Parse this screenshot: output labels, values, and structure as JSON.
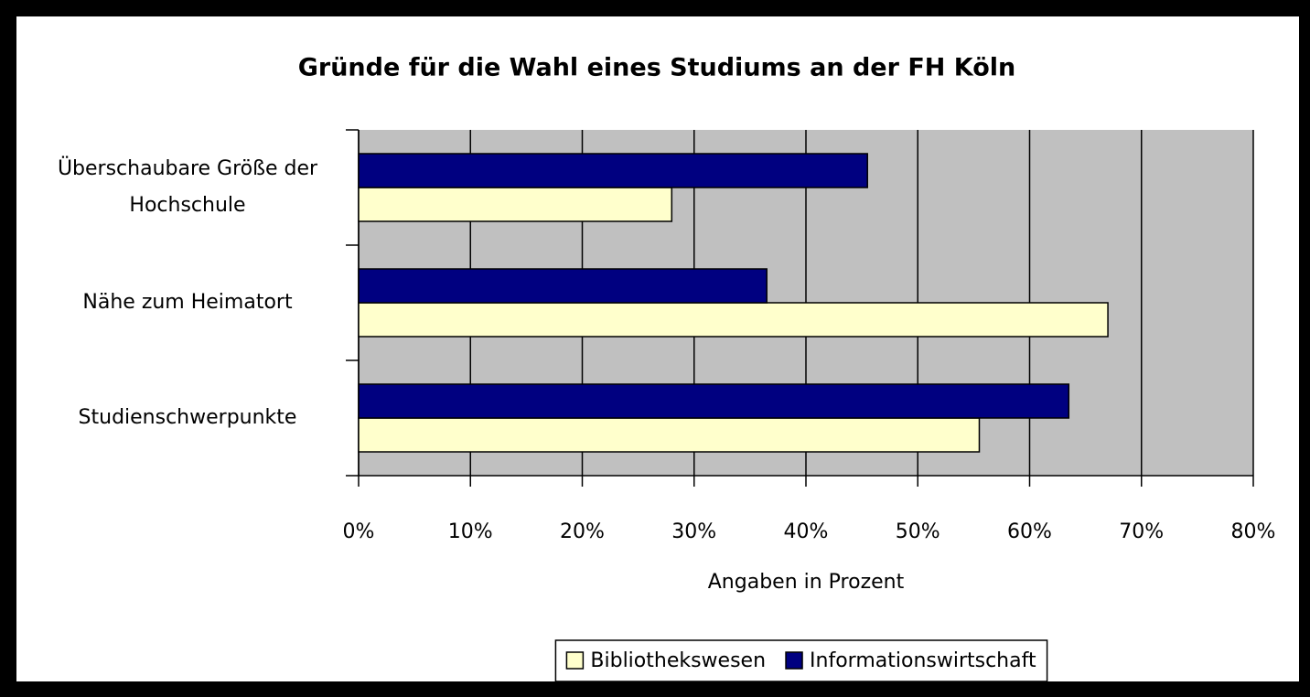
{
  "chart_data": {
    "type": "barh",
    "title": "Gründe für die Wahl eines Studiums an der FH Köln",
    "categories": [
      "Überschaubare Größe der Hochschule",
      "Nähe zum Heimatort",
      "Studienschwerpunkte"
    ],
    "series": [
      {
        "name": "Bibliothekswesen",
        "color": "#ffffcc",
        "values": [
          28,
          67,
          55.5
        ]
      },
      {
        "name": "Informationswirtschaft",
        "color": "#000080",
        "values": [
          45.5,
          36.5,
          63.5
        ]
      }
    ],
    "xlabel": "Angaben in Prozent",
    "xlim": [
      0,
      80
    ],
    "xticks": [
      {
        "value": 0,
        "label": "0%"
      },
      {
        "value": 10,
        "label": "10%"
      },
      {
        "value": 20,
        "label": "20%"
      },
      {
        "value": 30,
        "label": "30%"
      },
      {
        "value": 40,
        "label": "40%"
      },
      {
        "value": 50,
        "label": "50%"
      },
      {
        "value": 60,
        "label": "60%"
      },
      {
        "value": 70,
        "label": "70%"
      },
      {
        "value": 80,
        "label": "80%"
      }
    ],
    "grid": true,
    "legend": "bottom"
  }
}
